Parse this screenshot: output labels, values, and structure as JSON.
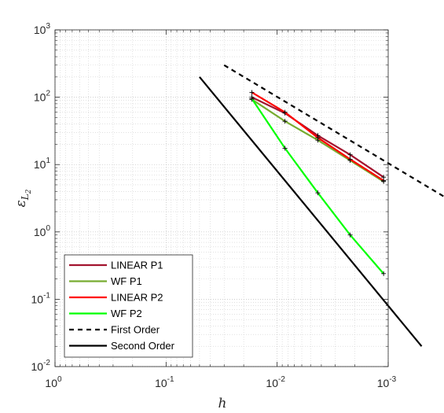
{
  "chart_data": {
    "type": "line",
    "xscale": "log",
    "yscale": "log",
    "x_reversed": true,
    "xlim": [
      1,
      0.001
    ],
    "ylim": [
      0.01,
      1000
    ],
    "xlabel": "h",
    "ylabel": "ε",
    "ylabel_subscript": "L",
    "ylabel_subsubscript": "2",
    "grid": true,
    "minor_grid": true,
    "legend_position": "bottom-left",
    "x_ticks": [
      {
        "value": 1,
        "base": "10",
        "exp": "0"
      },
      {
        "value": 0.1,
        "base": "10",
        "exp": "-1"
      },
      {
        "value": 0.01,
        "base": "10",
        "exp": "-2"
      },
      {
        "value": 0.001,
        "base": "10",
        "exp": "-3"
      }
    ],
    "y_ticks": [
      {
        "value": 0.01,
        "base": "10",
        "exp": "-2"
      },
      {
        "value": 0.1,
        "base": "10",
        "exp": "-1"
      },
      {
        "value": 1,
        "base": "10",
        "exp": "0"
      },
      {
        "value": 10,
        "base": "10",
        "exp": "1"
      },
      {
        "value": 100,
        "base": "10",
        "exp": "2"
      },
      {
        "value": 1000,
        "base": "10",
        "exp": "3"
      }
    ],
    "series": [
      {
        "name": "LINEAR P1",
        "color": "#a2142f",
        "dash": "solid",
        "markers": true,
        "x": [
          0.0169,
          0.0085,
          0.0043,
          0.0022,
          0.0011
        ],
        "y": [
          100,
          58,
          27,
          14,
          6.5
        ]
      },
      {
        "name": "WF P1",
        "color": "#77ac30",
        "dash": "solid",
        "markers": true,
        "x": [
          0.0169,
          0.0085,
          0.0043,
          0.0022,
          0.0011
        ],
        "y": [
          93,
          44,
          23,
          11.5,
          5.6
        ]
      },
      {
        "name": "LINEAR P2",
        "color": "#ff0000",
        "dash": "solid",
        "markers": true,
        "x": [
          0.0169,
          0.0085,
          0.0043,
          0.0022,
          0.0011
        ],
        "y": [
          118,
          60,
          25,
          12,
          5.8
        ]
      },
      {
        "name": "WF P2",
        "color": "#00ff00",
        "dash": "solid",
        "markers": true,
        "x": [
          0.0169,
          0.0085,
          0.0043,
          0.0022,
          0.0011
        ],
        "y": [
          95,
          17.5,
          3.8,
          0.9,
          0.24
        ]
      },
      {
        "name": "First Order",
        "color": "#000000",
        "dash": "dashed",
        "markers": false,
        "x": [
          0.03,
          0.0003
        ],
        "y": [
          300,
          3.2
        ]
      },
      {
        "name": "Second Order",
        "color": "#000000",
        "dash": "solid",
        "markers": false,
        "x": [
          0.05,
          0.0005
        ],
        "y": [
          200,
          0.02
        ]
      }
    ]
  }
}
